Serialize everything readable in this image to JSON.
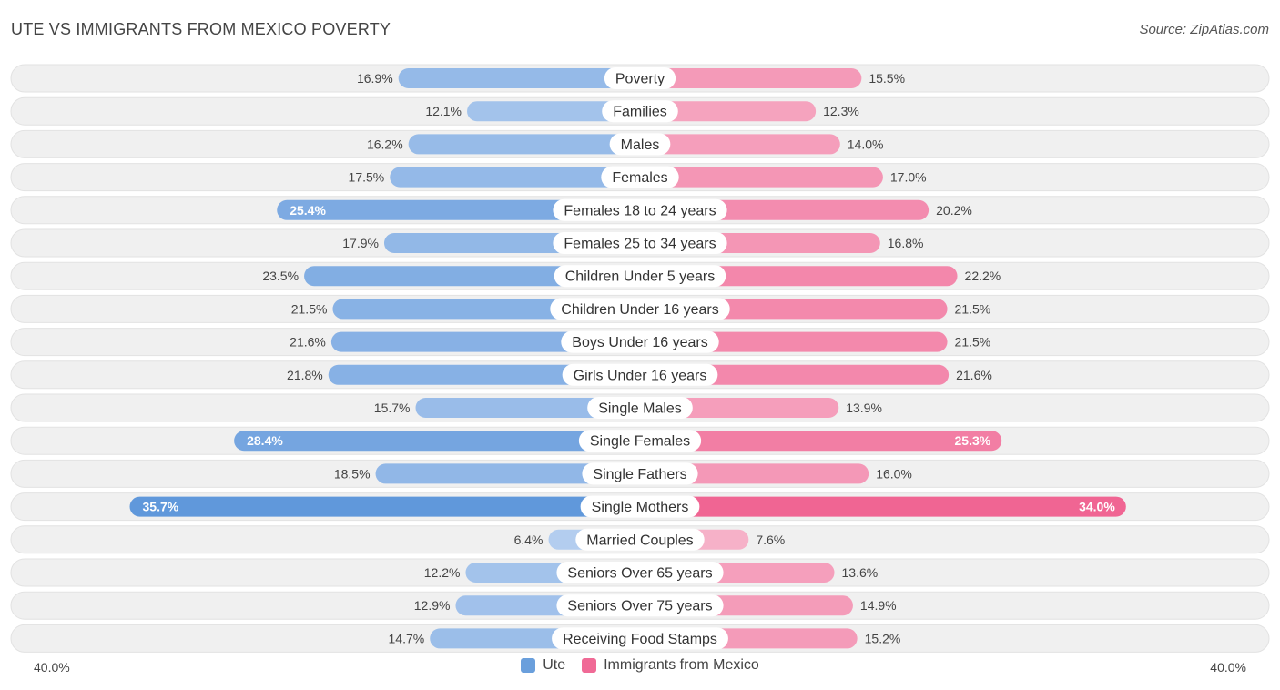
{
  "header": {
    "title": "UTE VS IMMIGRANTS FROM MEXICO POVERTY",
    "source": "Source: ZipAtlas.com"
  },
  "axis": {
    "left_label": "40.0%",
    "right_label": "40.0%"
  },
  "legend": {
    "ute": "Ute",
    "mexico": "Immigrants from Mexico"
  },
  "colors": {
    "ute": "#6a9fdc",
    "mexico": "#f06a96",
    "row_bg": "#f1f1f1"
  },
  "chart_data": {
    "type": "bar",
    "orientation": "horizontal-diverging",
    "title": "UTE VS IMMIGRANTS FROM MEXICO POVERTY",
    "xlim": [
      -40,
      40
    ],
    "unit": "%",
    "categories": [
      "Poverty",
      "Families",
      "Males",
      "Females",
      "Females 18 to 24 years",
      "Females 25 to 34 years",
      "Children Under 5 years",
      "Children Under 16 years",
      "Boys Under 16 years",
      "Girls Under 16 years",
      "Single Males",
      "Single Females",
      "Single Fathers",
      "Single Mothers",
      "Married Couples",
      "Seniors Over 65 years",
      "Seniors Over 75 years",
      "Receiving Food Stamps"
    ],
    "series": [
      {
        "name": "Ute",
        "values": [
          16.9,
          12.1,
          16.2,
          17.5,
          25.4,
          17.9,
          23.5,
          21.5,
          21.6,
          21.8,
          15.7,
          28.4,
          18.5,
          35.7,
          6.4,
          12.2,
          12.9,
          14.7
        ],
        "labels": [
          "16.9%",
          "12.1%",
          "16.2%",
          "17.5%",
          "25.4%",
          "17.9%",
          "23.5%",
          "21.5%",
          "21.6%",
          "21.8%",
          "15.7%",
          "28.4%",
          "18.5%",
          "35.7%",
          "6.4%",
          "12.2%",
          "12.9%",
          "14.7%"
        ]
      },
      {
        "name": "Immigrants from Mexico",
        "values": [
          15.5,
          12.3,
          14.0,
          17.0,
          20.2,
          16.8,
          22.2,
          21.5,
          21.5,
          21.6,
          13.9,
          25.3,
          16.0,
          34.0,
          7.6,
          13.6,
          14.9,
          15.2
        ],
        "labels": [
          "15.5%",
          "12.3%",
          "14.0%",
          "17.0%",
          "20.2%",
          "16.8%",
          "22.2%",
          "21.5%",
          "21.5%",
          "21.6%",
          "13.9%",
          "25.3%",
          "16.0%",
          "34.0%",
          "7.6%",
          "13.6%",
          "14.9%",
          "15.2%"
        ]
      }
    ]
  }
}
